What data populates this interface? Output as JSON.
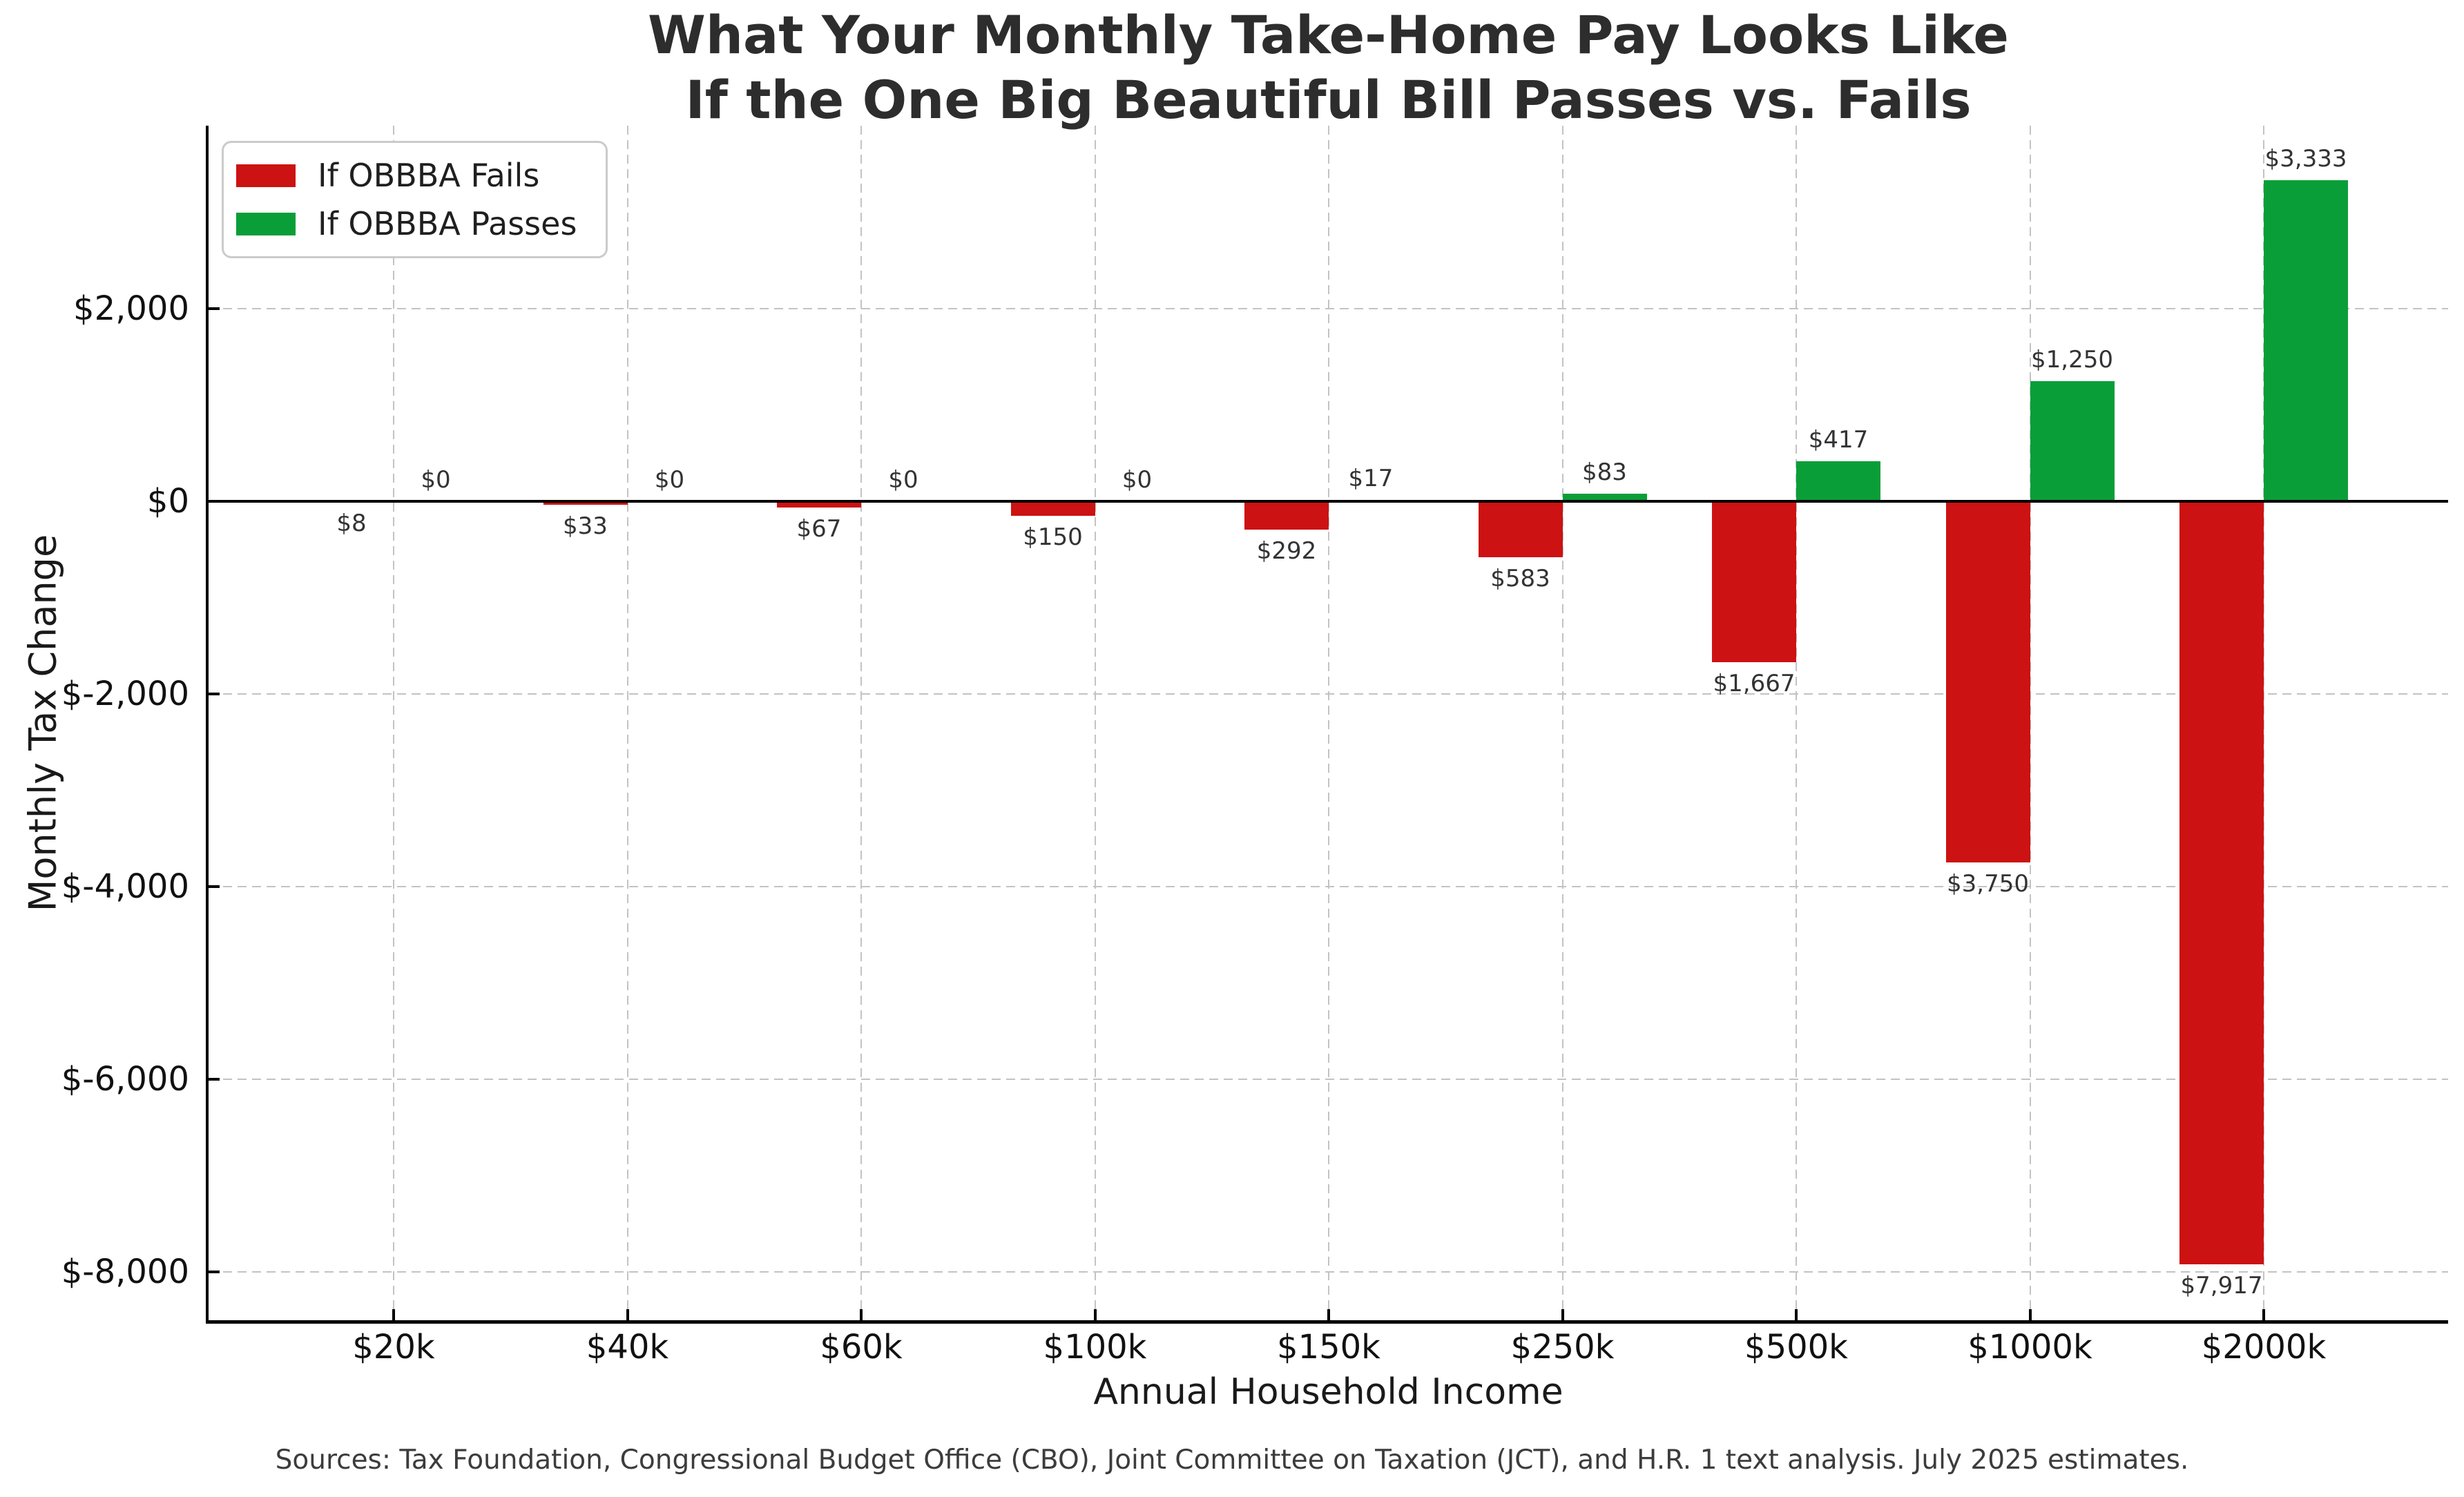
{
  "title": {
    "line1": "What Your Monthly Take-Home Pay Looks Like",
    "line2": "If the One Big Beautiful Bill Passes vs. Fails"
  },
  "source": "Sources: Tax Foundation, Congressional Budget Office (CBO), Joint Committee on Taxation (JCT), and H.R. 1 text analysis. July 2025 estimates.",
  "legend": {
    "items": [
      {
        "label": "If OBBBA Fails",
        "color": "#cc1212"
      },
      {
        "label": "If OBBBA Passes",
        "color": "#0a9e38"
      }
    ]
  },
  "colors": {
    "fails_red": "#cc1212",
    "passes_green": "#0a9e38",
    "grid": "#c3c3c3",
    "axis": "#000000",
    "tick_text": "#111111",
    "bar_label_text": "#333333",
    "title_text": "#2d2d2d",
    "source_text": "#3c3c3c",
    "legend_border": "#cbcbcb"
  },
  "chart_data": {
    "type": "bar",
    "title": "What Your Monthly Take-Home Pay Looks Like\nIf the One Big Beautiful Bill Passes vs. Fails",
    "xlabel": "Annual Household Income",
    "ylabel": "Monthly Tax Change",
    "categories": [
      "$20k",
      "$40k",
      "$60k",
      "$100k",
      "$150k",
      "$250k",
      "$500k",
      "$1000k",
      "$2000k"
    ],
    "series": [
      {
        "name": "If OBBBA Fails",
        "color": "#cc1212",
        "values": [
          -8,
          -33,
          -67,
          -150,
          -292,
          -583,
          -1667,
          -3750,
          -7917
        ],
        "bar_labels": [
          "$8",
          "$33",
          "$67",
          "$150",
          "$292",
          "$583",
          "$1,667",
          "$3,750",
          "$7,917"
        ]
      },
      {
        "name": "If OBBBA Passes",
        "color": "#0a9e38",
        "values": [
          0,
          0,
          0,
          0,
          17,
          83,
          417,
          1250,
          3333
        ],
        "bar_labels": [
          "$0",
          "$0",
          "$0",
          "$0",
          "$17",
          "$83",
          "$417",
          "$1,250",
          "$3,333"
        ]
      }
    ],
    "yticks": [
      {
        "value": 2000,
        "label": "$2,000"
      },
      {
        "value": 0,
        "label": "$0"
      },
      {
        "value": -2000,
        "label": "$-2,000"
      },
      {
        "value": -4000,
        "label": "$-4,000"
      },
      {
        "value": -6000,
        "label": "$-6,000"
      },
      {
        "value": -8000,
        "label": "$-8,000"
      }
    ],
    "ylim": [
      -8500,
      3900
    ],
    "grid": true,
    "zero_line": true,
    "legend_position": "upper-left"
  }
}
